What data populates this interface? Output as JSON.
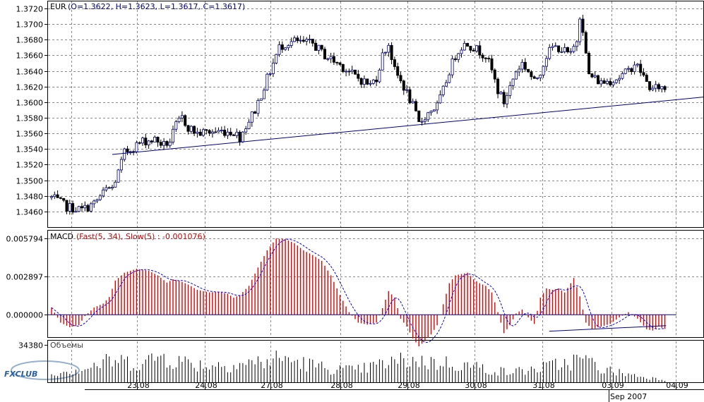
{
  "chart_data": [
    {
      "type": "candlestick",
      "panel": "price",
      "header": {
        "symbol": "EUR",
        "ohlc": "(O=1.3622, H=1.3623, L=1.3617, C=1.3617)"
      },
      "ylim": [
        1.344,
        1.373
      ],
      "y_ticks": [
        "1.3720",
        "1.3700",
        "1.3680",
        "1.3660",
        "1.3640",
        "1.3620",
        "1.3600",
        "1.3580",
        "1.3560",
        "1.3540",
        "1.3520",
        "1.3500",
        "1.3480",
        "1.3460"
      ],
      "trendline": {
        "start": {
          "bar": 20,
          "value": 1.3533
        },
        "end": {
          "bar": 200,
          "value": 1.3601
        }
      },
      "keypoints": [
        [
          0,
          1.3478
        ],
        [
          5,
          1.3466
        ],
        [
          10,
          1.3462
        ],
        [
          14,
          1.347
        ],
        [
          18,
          1.3488
        ],
        [
          20,
          1.349
        ],
        [
          22,
          1.351
        ],
        [
          24,
          1.3535
        ],
        [
          26,
          1.354
        ],
        [
          30,
          1.355
        ],
        [
          34,
          1.3552
        ],
        [
          37,
          1.3545
        ],
        [
          39,
          1.355
        ],
        [
          41,
          1.357
        ],
        [
          43,
          1.358
        ],
        [
          45,
          1.3568
        ],
        [
          48,
          1.356
        ],
        [
          52,
          1.3562
        ],
        [
          56,
          1.3563
        ],
        [
          60,
          1.3562
        ],
        [
          62,
          1.3555
        ],
        [
          64,
          1.357
        ],
        [
          67,
          1.359
        ],
        [
          70,
          1.362
        ],
        [
          73,
          1.365
        ],
        [
          75,
          1.367
        ],
        [
          77,
          1.3675
        ],
        [
          80,
          1.3678
        ],
        [
          82,
          1.3676
        ],
        [
          86,
          1.3675
        ],
        [
          90,
          1.366
        ],
        [
          95,
          1.3648
        ],
        [
          100,
          1.3633
        ],
        [
          105,
          1.3622
        ],
        [
          107,
          1.3632
        ],
        [
          109,
          1.366
        ],
        [
          111,
          1.3675
        ],
        [
          113,
          1.364
        ],
        [
          116,
          1.362
        ],
        [
          119,
          1.3595
        ],
        [
          121,
          1.3572
        ],
        [
          123,
          1.3582
        ],
        [
          125,
          1.359
        ],
        [
          127,
          1.3595
        ],
        [
          129,
          1.3615
        ],
        [
          131,
          1.364
        ],
        [
          133,
          1.366
        ],
        [
          135,
          1.3672
        ],
        [
          137,
          1.3675
        ],
        [
          139,
          1.367
        ],
        [
          141,
          1.3665
        ],
        [
          143,
          1.366
        ],
        [
          145,
          1.364
        ],
        [
          147,
          1.3615
        ],
        [
          149,
          1.36
        ],
        [
          151,
          1.362
        ],
        [
          153,
          1.364
        ],
        [
          155,
          1.365
        ],
        [
          157,
          1.364
        ],
        [
          159,
          1.3625
        ],
        [
          161,
          1.364
        ],
        [
          163,
          1.366
        ],
        [
          165,
          1.367
        ],
        [
          167,
          1.367
        ],
        [
          169,
          1.3665
        ],
        [
          171,
          1.366
        ],
        [
          173,
          1.368
        ],
        [
          174,
          1.3712
        ],
        [
          175,
          1.3695
        ],
        [
          176,
          1.366
        ],
        [
          177,
          1.3635
        ],
        [
          179,
          1.363
        ],
        [
          181,
          1.3625
        ],
        [
          184,
          1.3628
        ],
        [
          187,
          1.3632
        ],
        [
          190,
          1.364
        ],
        [
          192,
          1.365
        ],
        [
          194,
          1.364
        ],
        [
          196,
          1.3625
        ],
        [
          198,
          1.3615
        ],
        [
          200,
          1.362
        ],
        [
          202,
          1.3617
        ]
      ]
    },
    {
      "type": "histogram",
      "panel": "macd",
      "header": {
        "name": "MACD",
        "params": "(Fast(5, 34), Slow(5) : -0.001076)"
      },
      "ylim": [
        -0.0017,
        0.0064
      ],
      "y_ticks": [
        "0.005794",
        "0.002897",
        "0.000000"
      ],
      "zero_line": 0,
      "trendline": {
        "start": {
          "bar": 163,
          "value": -0.00125
        },
        "end": {
          "bar": 201,
          "value": -0.00083
        }
      },
      "keypoints": [
        [
          0,
          0.00055
        ],
        [
          3,
          -0.0006
        ],
        [
          6,
          -0.00095
        ],
        [
          9,
          -0.0008
        ],
        [
          11,
          -0.0001
        ],
        [
          14,
          0.00055
        ],
        [
          17,
          0.00085
        ],
        [
          19,
          0.00135
        ],
        [
          21,
          0.0026
        ],
        [
          24,
          0.0032
        ],
        [
          28,
          0.0035
        ],
        [
          32,
          0.00335
        ],
        [
          35,
          0.003
        ],
        [
          38,
          0.00245
        ],
        [
          40,
          0.0027
        ],
        [
          42,
          0.0026
        ],
        [
          45,
          0.0023
        ],
        [
          48,
          0.0019
        ],
        [
          52,
          0.0017
        ],
        [
          55,
          0.00175
        ],
        [
          58,
          0.0016
        ],
        [
          60,
          0.0013
        ],
        [
          62,
          0.0015
        ],
        [
          65,
          0.0022
        ],
        [
          68,
          0.0036
        ],
        [
          71,
          0.0049
        ],
        [
          74,
          0.0058
        ],
        [
          77,
          0.00575
        ],
        [
          80,
          0.00545
        ],
        [
          83,
          0.0049
        ],
        [
          86,
          0.00455
        ],
        [
          89,
          0.0041
        ],
        [
          92,
          0.003
        ],
        [
          95,
          0.0015
        ],
        [
          98,
          0.0002
        ],
        [
          101,
          -0.0006
        ],
        [
          104,
          -0.00075
        ],
        [
          107,
          -0.0006
        ],
        [
          109,
          0.0005
        ],
        [
          111,
          0.0018
        ],
        [
          113,
          0.0013
        ],
        [
          115,
          -0.0003
        ],
        [
          117,
          -0.0009
        ],
        [
          119,
          -0.0018
        ],
        [
          121,
          -0.0024
        ],
        [
          123,
          -0.002
        ],
        [
          125,
          -0.0015
        ],
        [
          127,
          -0.0008
        ],
        [
          129,
          0.0008
        ],
        [
          131,
          0.0024
        ],
        [
          133,
          0.003
        ],
        [
          135,
          0.0031
        ],
        [
          137,
          0.0032
        ],
        [
          139,
          0.0027
        ],
        [
          141,
          0.0024
        ],
        [
          143,
          0.0022
        ],
        [
          145,
          0.0017
        ],
        [
          147,
          0.0002
        ],
        [
          149,
          -0.0014
        ],
        [
          151,
          -0.0008
        ],
        [
          153,
          0.0001
        ],
        [
          155,
          0.0004
        ],
        [
          157,
          -0.0002
        ],
        [
          159,
          -0.0007
        ],
        [
          161,
          0.0013
        ],
        [
          163,
          0.002
        ],
        [
          165,
          0.0019
        ],
        [
          167,
          0.002
        ],
        [
          169,
          0.0017
        ],
        [
          171,
          0.0024
        ],
        [
          172,
          0.0028
        ],
        [
          174,
          0.0014
        ],
        [
          176,
          -0.0006
        ],
        [
          178,
          -0.0011
        ],
        [
          181,
          -0.0009
        ],
        [
          184,
          -0.0007
        ],
        [
          187,
          -0.0002
        ],
        [
          190,
          0.0002
        ],
        [
          193,
          -0.0003
        ],
        [
          196,
          -0.0011
        ],
        [
          198,
          -0.0012
        ],
        [
          200,
          -0.0009
        ],
        [
          202,
          -0.00108
        ]
      ]
    },
    {
      "type": "bar",
      "panel": "volume",
      "header": {
        "name": "Объемы"
      },
      "ylim": [
        0,
        34380
      ],
      "y_ticks": [
        "34380"
      ],
      "keypoints": [
        [
          0,
          11000
        ],
        [
          10,
          15000
        ],
        [
          20,
          24000
        ],
        [
          30,
          21000
        ],
        [
          36,
          30000
        ],
        [
          40,
          25000
        ],
        [
          50,
          19000
        ],
        [
          60,
          20000
        ],
        [
          70,
          23000
        ],
        [
          76,
          27000
        ],
        [
          82,
          22000
        ],
        [
          90,
          16000
        ],
        [
          100,
          13000
        ],
        [
          110,
          21000
        ],
        [
          118,
          25000
        ],
        [
          125,
          22000
        ],
        [
          132,
          21000
        ],
        [
          140,
          17000
        ],
        [
          150,
          11000
        ],
        [
          160,
          15000
        ],
        [
          170,
          22000
        ],
        [
          175,
          26000
        ],
        [
          182,
          14000
        ],
        [
          190,
          9000
        ],
        [
          197,
          5000
        ],
        [
          202,
          3000
        ]
      ]
    }
  ],
  "x_axis": {
    "date_labels": [
      "23.08",
      "24.08",
      "27.08",
      "28.08",
      "29.08",
      "30.08",
      "31.08",
      "03.09",
      "04.09"
    ],
    "year_label": "Sep 2007"
  },
  "logo": {
    "text": "FXCLUB"
  },
  "colors": {
    "up_candle": "#ffffff",
    "down_candle": "#000000",
    "candle_outline_up": "#000080",
    "trendline": "#00008b",
    "macd_bars": "#e00000",
    "macd_signal": "#0000ff",
    "volume_bars": "#000000",
    "grid": "#8a8a8a",
    "header_red": "#cc0000",
    "logo_blue": "#2a5fa0"
  }
}
